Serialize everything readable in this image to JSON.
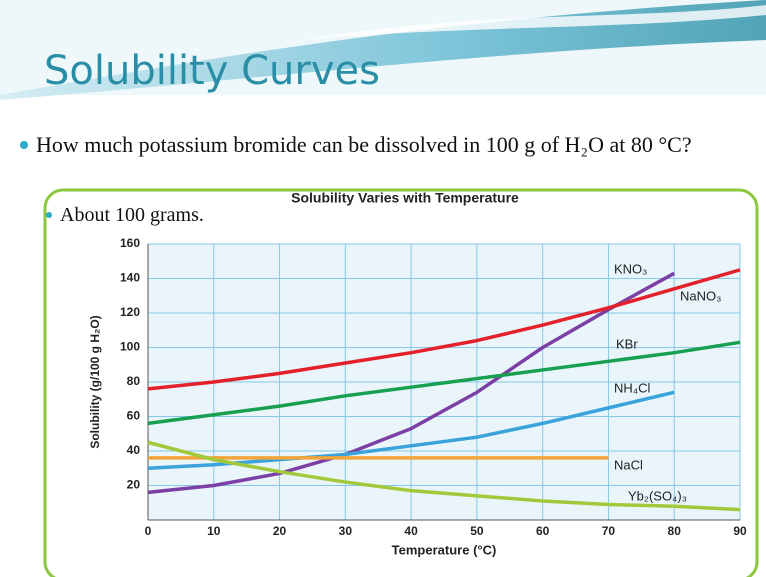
{
  "slide": {
    "title": "Solubility Curves",
    "bullets": [
      "How much potassium bromide can be dissolved in 100 g of H₂O at 80 °C?"
    ],
    "sub_bullets": [
      "About 100 grams."
    ]
  },
  "chart_data": {
    "type": "line",
    "title": "Solubility Varies with Temperature",
    "x_label": "Temperature (°C)",
    "y_label": "Solubility (g/100 g H₂O)",
    "x": [
      0,
      10,
      20,
      30,
      40,
      50,
      60,
      70,
      80,
      90
    ],
    "xlim": [
      0,
      90
    ],
    "ylim": [
      0,
      160
    ],
    "xticks": [
      0,
      10,
      20,
      30,
      40,
      50,
      60,
      70,
      80,
      90
    ],
    "yticks": [
      20,
      40,
      60,
      80,
      100,
      120,
      140,
      160
    ],
    "grid": true,
    "series": [
      {
        "name": "KNO₃",
        "color": "#7b3fa6",
        "values": [
          16,
          20,
          27,
          38,
          53,
          74,
          100,
          122,
          143,
          null
        ]
      },
      {
        "name": "NaNO₃",
        "color": "#e4202a",
        "values": [
          76,
          80,
          85,
          91,
          97,
          104,
          113,
          123,
          134,
          145
        ]
      },
      {
        "name": "KBr",
        "color": "#17a050",
        "values": [
          56,
          61,
          66,
          72,
          77,
          82,
          87,
          92,
          97,
          103
        ]
      },
      {
        "name": "NH₄Cl",
        "color": "#3aa3dc",
        "values": [
          30,
          32,
          35,
          38,
          43,
          48,
          56,
          65,
          74,
          null
        ]
      },
      {
        "name": "NaCl",
        "color": "#f2a53a",
        "values": [
          36,
          36,
          36,
          36,
          36,
          36,
          36,
          36,
          null,
          null
        ]
      },
      {
        "name": "Yb₂(SO₄)₃",
        "color": "#a3c93a",
        "values": [
          45,
          35,
          28,
          22,
          17,
          14,
          11,
          9,
          8,
          6
        ]
      }
    ]
  }
}
